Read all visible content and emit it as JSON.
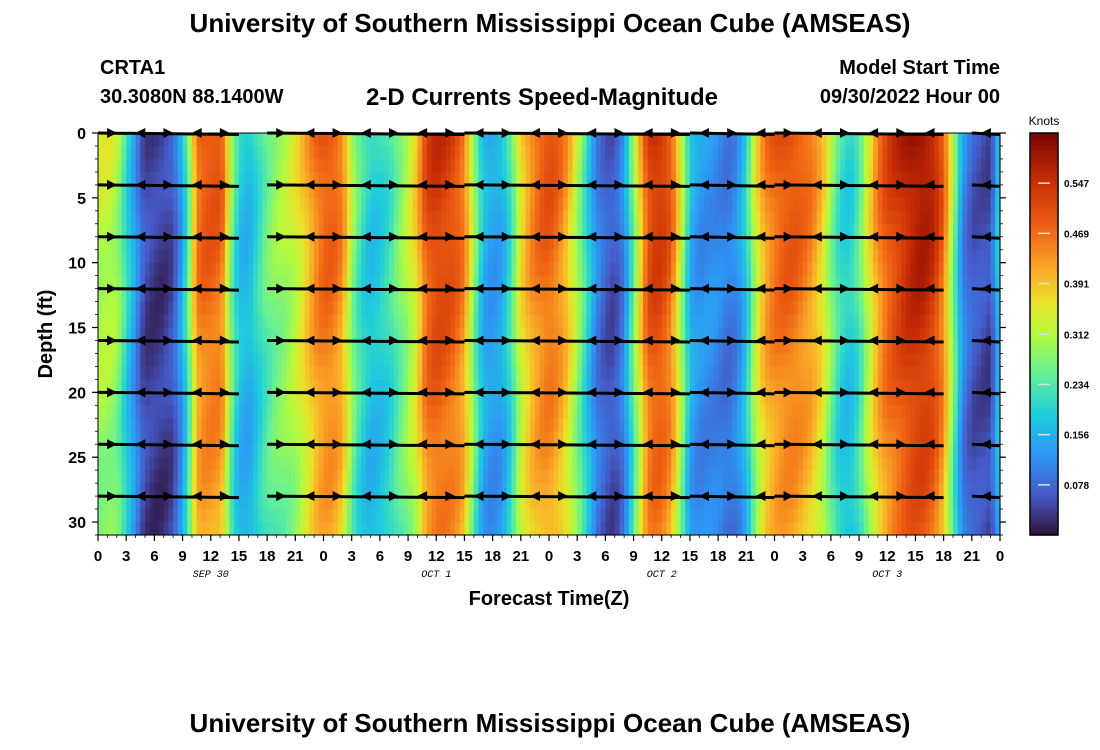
{
  "header": {
    "title": "University of Southern Mississippi Ocean Cube (AMSEAS)",
    "station_name": "CRTA1",
    "station_coords": "30.3080N  88.1400W",
    "subtitle": "2-D Currents Speed-Magnitude",
    "start_label": "Model Start Time",
    "start_value": "09/30/2022 Hour 00"
  },
  "footer": {
    "title": "University of Southern Mississippi Ocean Cube (AMSEAS)"
  },
  "chart_data": {
    "type": "heatmap",
    "title": "2-D Currents Speed-Magnitude",
    "xlabel": "Forecast Time(Z)",
    "ylabel": "Depth (ft)",
    "x_range_hours": [
      0,
      96
    ],
    "y_range_ft": [
      0,
      31
    ],
    "x_ticks": [
      "0",
      "3",
      "6",
      "9",
      "12",
      "15",
      "18",
      "21",
      "0",
      "3",
      "6",
      "9",
      "12",
      "15",
      "18",
      "21",
      "0",
      "3",
      "6",
      "9",
      "12",
      "15",
      "18",
      "21",
      "0",
      "3",
      "6",
      "9",
      "12",
      "15",
      "18",
      "21",
      "0"
    ],
    "day_labels": [
      {
        "label": "SEP 30",
        "hour": 12
      },
      {
        "label": "OCT 1",
        "hour": 36
      },
      {
        "label": "OCT 2",
        "hour": 60
      },
      {
        "label": "OCT 3",
        "hour": 84
      }
    ],
    "y_ticks": [
      "0",
      "5",
      "10",
      "15",
      "20",
      "25",
      "30"
    ],
    "y_tick_values": [
      0,
      5,
      10,
      15,
      20,
      25,
      30
    ],
    "colorbar": {
      "unit": "Knots",
      "range": [
        0,
        0.625
      ],
      "ticks": [
        "0.078",
        "0.156",
        "0.234",
        "0.312",
        "0.391",
        "0.469",
        "0.547"
      ],
      "tick_values": [
        0.078,
        0.156,
        0.234,
        0.312,
        0.391,
        0.469,
        0.547
      ]
    },
    "speed_profile": {
      "hours": [
        0,
        1,
        2,
        3,
        4,
        4.5,
        5,
        6,
        7,
        8,
        9,
        10,
        10.5,
        11,
        12,
        13,
        13.5,
        14,
        15,
        16,
        17,
        18,
        19,
        20,
        21,
        22,
        23,
        24,
        25,
        26,
        26.5,
        27,
        28,
        29,
        30,
        31,
        32,
        33,
        34,
        34.5,
        35,
        36,
        37,
        38,
        39,
        40,
        41,
        42,
        43,
        44,
        45,
        46,
        47,
        48,
        49,
        50,
        51,
        52,
        53,
        54,
        55,
        56,
        57,
        58,
        58.5,
        59,
        60,
        61,
        62,
        63,
        64,
        65,
        66,
        67,
        68,
        69,
        70,
        71,
        72,
        73,
        74,
        75,
        76,
        77,
        78,
        79,
        80,
        81,
        82,
        83,
        84,
        85,
        86,
        87,
        88,
        89,
        90,
        91,
        92,
        93,
        94,
        95,
        96
      ],
      "speeds": [
        0.33,
        0.34,
        0.32,
        0.22,
        0.14,
        0.08,
        0.05,
        0.04,
        0.04,
        0.06,
        0.16,
        0.34,
        0.47,
        0.5,
        0.51,
        0.5,
        0.45,
        0.31,
        0.19,
        0.17,
        0.22,
        0.27,
        0.3,
        0.32,
        0.35,
        0.4,
        0.46,
        0.5,
        0.5,
        0.46,
        0.39,
        0.31,
        0.23,
        0.19,
        0.2,
        0.23,
        0.28,
        0.33,
        0.4,
        0.47,
        0.52,
        0.55,
        0.54,
        0.52,
        0.47,
        0.3,
        0.17,
        0.14,
        0.16,
        0.24,
        0.38,
        0.45,
        0.49,
        0.51,
        0.48,
        0.42,
        0.32,
        0.22,
        0.12,
        0.07,
        0.06,
        0.12,
        0.28,
        0.45,
        0.52,
        0.55,
        0.55,
        0.5,
        0.35,
        0.17,
        0.13,
        0.13,
        0.12,
        0.1,
        0.12,
        0.2,
        0.35,
        0.45,
        0.49,
        0.51,
        0.51,
        0.49,
        0.46,
        0.4,
        0.3,
        0.22,
        0.2,
        0.25,
        0.36,
        0.46,
        0.52,
        0.55,
        0.58,
        0.6,
        0.6,
        0.57,
        0.49,
        0.3,
        0.12,
        0.07,
        0.06,
        0.05,
        0.22
      ]
    },
    "arrow_depths_ft": [
      0,
      4,
      8,
      12,
      16,
      20,
      24,
      28
    ],
    "arrow_segments_hours": [
      [
        0,
        15
      ],
      [
        18,
        39
      ],
      [
        39,
        63
      ],
      [
        63,
        72
      ],
      [
        72,
        90
      ],
      [
        93,
        96
      ]
    ],
    "arrow_direction": "westward"
  }
}
